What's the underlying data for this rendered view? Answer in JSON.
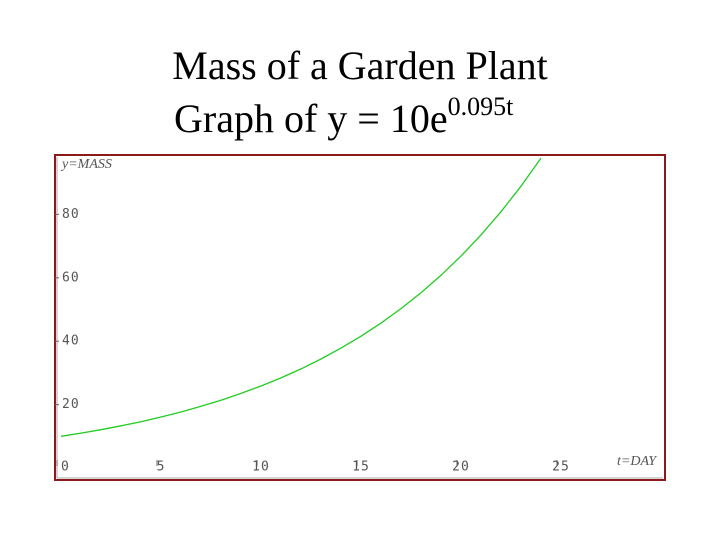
{
  "chart_data": {
    "type": "line",
    "title": "Mass of a Garden Plant",
    "subtitle": "Graph of y = 10e",
    "subtitle_exponent": "0.095t",
    "x_label": "t=DAY",
    "y_label": "y=MASS",
    "x": [
      0,
      1,
      2,
      3,
      4,
      5,
      6,
      7,
      8,
      9,
      10,
      11,
      12,
      13,
      14,
      15,
      16,
      17,
      18,
      19,
      20,
      21,
      22,
      23,
      24
    ],
    "series": [
      {
        "name": "y = 10e^0.095t",
        "color": "#22cc22",
        "values": [
          10,
          11.0,
          12.09,
          13.3,
          14.62,
          16.08,
          17.68,
          19.45,
          21.38,
          23.52,
          25.86,
          28.43,
          31.27,
          34.38,
          37.81,
          41.58,
          45.72,
          50.28,
          55.29,
          60.8,
          66.86,
          73.52,
          80.85,
          88.91,
          97.77
        ]
      }
    ],
    "xlim": [
      0,
      30
    ],
    "ylim": [
      0,
      100
    ],
    "xticks": [
      0,
      5,
      10,
      15,
      20,
      25
    ],
    "yticks": [
      20,
      40,
      60,
      80
    ]
  }
}
